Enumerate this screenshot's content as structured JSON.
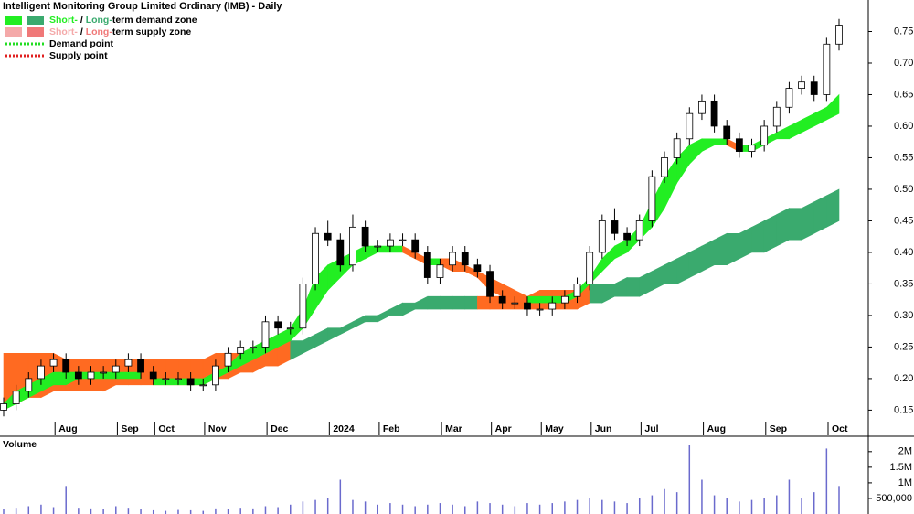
{
  "chart_data": {
    "type": "candlestick",
    "title": "Intelligent Monitoring Group Limited Ordinary (IMB) - Daily",
    "legend": [
      {
        "short": "Short-",
        "sep": " / ",
        "long": "Long-",
        "rest": "term demand zone",
        "short_color": "#22ee22",
        "long_color": "#3aaa6e"
      },
      {
        "short": "Short-",
        "sep": " / ",
        "long": "Long-",
        "rest": "term supply zone",
        "short_color": "#f4a9a9",
        "long_color": "#f07878"
      },
      {
        "label": "Demand point",
        "color": "#22dd22"
      },
      {
        "label": "Supply point",
        "color": "#e02020"
      }
    ],
    "categories": [
      null,
      null,
      null,
      null,
      null,
      "Aug",
      null,
      null,
      null,
      null,
      "Sep",
      null,
      null,
      "Oct",
      null,
      null,
      null,
      "Nov",
      null,
      null,
      null,
      null,
      "Dec",
      null,
      null,
      null,
      null,
      "2024",
      null,
      null,
      null,
      "Feb",
      null,
      null,
      null,
      null,
      "Mar",
      null,
      null,
      null,
      "Apr",
      null,
      null,
      null,
      "May",
      null,
      null,
      null,
      "Jun",
      null,
      null,
      null,
      "Jul",
      null,
      null,
      null,
      null,
      "Aug",
      null,
      null,
      null,
      null,
      "Sep",
      null,
      null,
      null,
      null,
      "Oct"
    ],
    "open": [
      0.15,
      0.16,
      0.18,
      0.2,
      0.22,
      0.23,
      0.21,
      0.2,
      0.21,
      0.21,
      0.22,
      0.23,
      0.21,
      0.2,
      0.2,
      0.2,
      0.19,
      0.19,
      0.22,
      0.24,
      0.25,
      0.25,
      0.29,
      0.28,
      0.28,
      0.35,
      0.43,
      0.42,
      0.38,
      0.44,
      0.41,
      0.41,
      0.42,
      0.42,
      0.4,
      0.36,
      0.38,
      0.4,
      0.38,
      0.37,
      0.33,
      0.32,
      0.32,
      0.31,
      0.31,
      0.32,
      0.33,
      0.35,
      0.4,
      0.45,
      0.43,
      0.42,
      0.45,
      0.52,
      0.55,
      0.58,
      0.62,
      0.64,
      0.6,
      0.58,
      0.56,
      0.57,
      0.6,
      0.63,
      0.66,
      0.67,
      0.65,
      0.73
    ],
    "high": [
      0.17,
      0.19,
      0.21,
      0.23,
      0.24,
      0.24,
      0.22,
      0.22,
      0.22,
      0.23,
      0.24,
      0.24,
      0.22,
      0.21,
      0.21,
      0.21,
      0.2,
      0.23,
      0.25,
      0.26,
      0.26,
      0.3,
      0.3,
      0.29,
      0.36,
      0.44,
      0.45,
      0.43,
      0.46,
      0.45,
      0.42,
      0.43,
      0.43,
      0.43,
      0.41,
      0.39,
      0.41,
      0.41,
      0.39,
      0.38,
      0.34,
      0.33,
      0.33,
      0.32,
      0.33,
      0.34,
      0.36,
      0.41,
      0.46,
      0.47,
      0.44,
      0.46,
      0.53,
      0.56,
      0.59,
      0.63,
      0.65,
      0.65,
      0.61,
      0.59,
      0.58,
      0.61,
      0.64,
      0.67,
      0.68,
      0.68,
      0.74,
      0.77
    ],
    "low": [
      0.14,
      0.15,
      0.17,
      0.19,
      0.21,
      0.2,
      0.19,
      0.19,
      0.2,
      0.2,
      0.21,
      0.2,
      0.19,
      0.19,
      0.19,
      0.18,
      0.18,
      0.18,
      0.21,
      0.23,
      0.24,
      0.24,
      0.27,
      0.27,
      0.27,
      0.34,
      0.41,
      0.37,
      0.37,
      0.4,
      0.4,
      0.4,
      0.41,
      0.39,
      0.35,
      0.35,
      0.37,
      0.37,
      0.36,
      0.32,
      0.31,
      0.31,
      0.3,
      0.3,
      0.3,
      0.31,
      0.32,
      0.34,
      0.39,
      0.42,
      0.41,
      0.41,
      0.44,
      0.51,
      0.54,
      0.57,
      0.61,
      0.59,
      0.57,
      0.55,
      0.55,
      0.56,
      0.59,
      0.62,
      0.65,
      0.64,
      0.64,
      0.72
    ],
    "close": [
      0.16,
      0.18,
      0.2,
      0.22,
      0.23,
      0.21,
      0.2,
      0.21,
      0.21,
      0.22,
      0.23,
      0.21,
      0.2,
      0.2,
      0.2,
      0.19,
      0.19,
      0.22,
      0.24,
      0.25,
      0.25,
      0.29,
      0.28,
      0.28,
      0.35,
      0.43,
      0.42,
      0.38,
      0.44,
      0.41,
      0.41,
      0.42,
      0.42,
      0.4,
      0.36,
      0.38,
      0.4,
      0.38,
      0.37,
      0.33,
      0.32,
      0.32,
      0.31,
      0.31,
      0.32,
      0.33,
      0.35,
      0.4,
      0.45,
      0.43,
      0.42,
      0.45,
      0.52,
      0.55,
      0.58,
      0.62,
      0.64,
      0.6,
      0.58,
      0.56,
      0.57,
      0.6,
      0.63,
      0.66,
      0.67,
      0.65,
      0.73,
      0.76
    ],
    "short_zone": {
      "lower": [
        0.15,
        0.16,
        0.17,
        0.18,
        0.19,
        0.19,
        0.2,
        0.2,
        0.2,
        0.2,
        0.2,
        0.2,
        0.19,
        0.19,
        0.19,
        0.19,
        0.19,
        0.2,
        0.21,
        0.22,
        0.23,
        0.24,
        0.25,
        0.26,
        0.28,
        0.31,
        0.34,
        0.36,
        0.38,
        0.39,
        0.4,
        0.4,
        0.4,
        0.39,
        0.38,
        0.38,
        0.37,
        0.37,
        0.36,
        0.34,
        0.33,
        0.32,
        0.32,
        0.32,
        0.32,
        0.32,
        0.33,
        0.35,
        0.37,
        0.39,
        0.4,
        0.42,
        0.44,
        0.47,
        0.51,
        0.54,
        0.56,
        0.57,
        0.57,
        0.56,
        0.56,
        0.57,
        0.58,
        0.58,
        0.59,
        0.6,
        0.61,
        0.62
      ],
      "upper": [
        0.16,
        0.18,
        0.19,
        0.2,
        0.21,
        0.21,
        0.21,
        0.21,
        0.21,
        0.21,
        0.21,
        0.21,
        0.2,
        0.2,
        0.2,
        0.2,
        0.2,
        0.21,
        0.22,
        0.24,
        0.25,
        0.26,
        0.27,
        0.28,
        0.31,
        0.36,
        0.38,
        0.39,
        0.4,
        0.41,
        0.41,
        0.41,
        0.41,
        0.4,
        0.39,
        0.39,
        0.39,
        0.38,
        0.37,
        0.36,
        0.35,
        0.34,
        0.33,
        0.33,
        0.33,
        0.33,
        0.34,
        0.36,
        0.39,
        0.41,
        0.42,
        0.44,
        0.48,
        0.52,
        0.55,
        0.57,
        0.58,
        0.58,
        0.58,
        0.57,
        0.57,
        0.58,
        0.59,
        0.6,
        0.61,
        0.62,
        0.63,
        0.65
      ]
    },
    "long_zone": {
      "lower": [
        0.16,
        0.16,
        0.17,
        0.17,
        0.18,
        0.18,
        0.18,
        0.18,
        0.18,
        0.19,
        0.19,
        0.19,
        0.19,
        0.19,
        0.19,
        0.19,
        0.19,
        0.2,
        0.2,
        0.21,
        0.21,
        0.22,
        0.22,
        0.23,
        0.24,
        0.25,
        0.26,
        0.27,
        0.28,
        0.29,
        0.29,
        0.3,
        0.3,
        0.31,
        0.31,
        0.31,
        0.31,
        0.31,
        0.31,
        0.31,
        0.31,
        0.31,
        0.31,
        0.31,
        0.31,
        0.31,
        0.31,
        0.32,
        0.32,
        0.33,
        0.33,
        0.33,
        0.34,
        0.35,
        0.35,
        0.36,
        0.37,
        0.38,
        0.38,
        0.39,
        0.4,
        0.4,
        0.41,
        0.42,
        0.42,
        0.43,
        0.44,
        0.45
      ],
      "upper": [
        0.24,
        0.24,
        0.24,
        0.24,
        0.24,
        0.23,
        0.23,
        0.23,
        0.23,
        0.23,
        0.23,
        0.23,
        0.23,
        0.23,
        0.23,
        0.23,
        0.23,
        0.24,
        0.24,
        0.24,
        0.24,
        0.25,
        0.25,
        0.26,
        0.26,
        0.27,
        0.28,
        0.28,
        0.29,
        0.3,
        0.3,
        0.31,
        0.32,
        0.32,
        0.33,
        0.33,
        0.33,
        0.33,
        0.33,
        0.33,
        0.33,
        0.33,
        0.33,
        0.34,
        0.34,
        0.34,
        0.34,
        0.35,
        0.35,
        0.35,
        0.36,
        0.36,
        0.37,
        0.38,
        0.39,
        0.4,
        0.41,
        0.42,
        0.43,
        0.43,
        0.44,
        0.45,
        0.46,
        0.47,
        0.47,
        0.48,
        0.49,
        0.5
      ]
    },
    "zone_colors": {
      "short_rising": "#22ee22",
      "short_falling": "#ff6a21",
      "long_above": "#3aaa6e",
      "long_below": "#ff6a21"
    },
    "ylim": [
      0.11,
      0.8
    ],
    "yticks": [
      0.15,
      {
        "value": 0.2,
        "label": "0.20"
      },
      0.25,
      {
        "value": 0.3,
        "label": "0.30"
      },
      0.35,
      {
        "value": 0.4,
        "label": "0.40"
      },
      0.45,
      {
        "value": 0.5,
        "label": "0.50"
      },
      0.55,
      {
        "value": 0.6,
        "label": "0.60"
      },
      0.65,
      {
        "value": 0.7,
        "label": "0.70"
      },
      0.75
    ],
    "volume": {
      "title": "Volume",
      "color": "#6a6acd",
      "values": [
        150000,
        200000,
        250000,
        300000,
        220000,
        900000,
        200000,
        180000,
        150000,
        250000,
        200000,
        150000,
        120000,
        100000,
        130000,
        120000,
        100000,
        180000,
        150000,
        200000,
        180000,
        250000,
        220000,
        300000,
        400000,
        450000,
        500000,
        1100000,
        450000,
        400000,
        300000,
        350000,
        300000,
        250000,
        300000,
        350000,
        300000,
        250000,
        400000,
        350000,
        300000,
        250000,
        350000,
        300000,
        350000,
        400000,
        450000,
        500000,
        450000,
        400000,
        350000,
        500000,
        600000,
        800000,
        700000,
        2200000,
        1100000,
        600000,
        500000,
        400000,
        450000,
        500000,
        600000,
        1100000,
        500000,
        700000,
        2100000,
        900000
      ],
      "ylim": [
        0,
        2200000
      ],
      "yticks": [
        {
          "value": 500000,
          "label": "500,000"
        },
        {
          "value": 1000000,
          "label": "1M"
        },
        {
          "value": 1500000,
          "label": "1.5M"
        },
        {
          "value": 2000000,
          "label": "2M"
        }
      ]
    }
  }
}
